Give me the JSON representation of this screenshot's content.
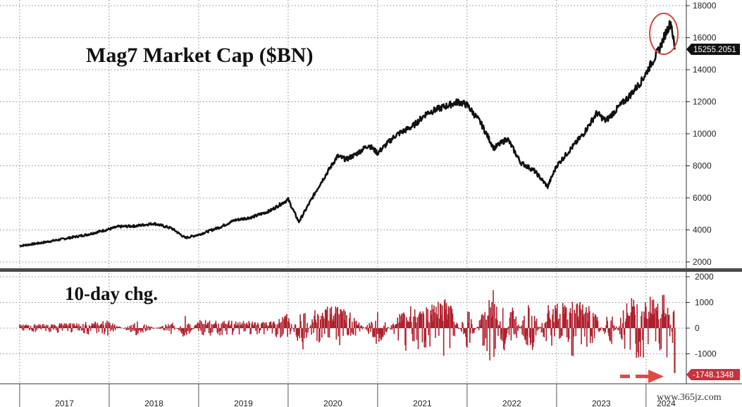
{
  "chart_data": [
    {
      "type": "line",
      "title": "Mag7 Market Cap ($BN)",
      "ylim": [
        1500,
        18200
      ],
      "y_ticks": [
        "2000",
        "4000",
        "6000",
        "8000",
        "10000",
        "12000",
        "14000",
        "16000",
        "18000"
      ],
      "y_tick_values": [
        2000,
        4000,
        6000,
        8000,
        10000,
        12000,
        14000,
        16000,
        18000
      ],
      "x_years": [
        "2017",
        "2018",
        "2019",
        "2020",
        "2021",
        "2022",
        "2023",
        "2024"
      ],
      "last_value_label": "15255.2051",
      "grid": true,
      "series": [
        {
          "x": [
            2017.0,
            2017.25,
            2017.5,
            2017.75,
            2018.0,
            2018.1,
            2018.3,
            2018.5,
            2018.7,
            2018.85,
            2019.0,
            2019.25,
            2019.4,
            2019.6,
            2019.8,
            2020.0,
            2020.12,
            2020.22,
            2020.35,
            2020.55,
            2020.65,
            2020.75,
            2020.9,
            2021.0,
            2021.2,
            2021.4,
            2021.55,
            2021.75,
            2021.9,
            2022.0,
            2022.15,
            2022.3,
            2022.45,
            2022.6,
            2022.75,
            2022.9,
            2023.0,
            2023.15,
            2023.3,
            2023.45,
            2023.55,
            2023.7,
            2023.82,
            2023.95,
            2024.05,
            2024.15,
            2024.22,
            2024.28,
            2024.32
          ],
          "values": [
            3000,
            3200,
            3450,
            3700,
            4050,
            4200,
            4250,
            4400,
            4100,
            3500,
            3700,
            4200,
            4600,
            4800,
            5200,
            5900,
            4500,
            5500,
            6800,
            8600,
            8400,
            8700,
            9300,
            8800,
            9900,
            10500,
            11300,
            11700,
            12000,
            11800,
            10700,
            9100,
            9700,
            8200,
            7700,
            6700,
            8000,
            9000,
            10000,
            11300,
            10800,
            11700,
            12400,
            13300,
            14300,
            15300,
            16300,
            17000,
            15255
          ]
        }
      ]
    },
    {
      "type": "bar",
      "title": "10-day chg.",
      "ylim": [
        -2100,
        2200
      ],
      "y_ticks": [
        "2000",
        "1000",
        "0",
        "-1000"
      ],
      "y_tick_values": [
        2000,
        1000,
        0,
        -1000
      ],
      "last_value_label": "-1748.1348",
      "series": [
        {
          "x": [
            2017.0,
            2017.5,
            2018.0,
            2018.3,
            2018.7,
            2018.85,
            2019.0,
            2019.4,
            2019.8,
            2020.0,
            2020.15,
            2020.3,
            2020.5,
            2020.7,
            2021.0,
            2021.3,
            2021.5,
            2021.8,
            2022.0,
            2022.3,
            2022.4,
            2022.5,
            2022.7,
            2022.9,
            2023.0,
            2023.2,
            2023.4,
            2023.6,
            2023.8,
            2024.0,
            2024.2,
            2024.25,
            2024.32
          ],
          "values": [
            150,
            200,
            300,
            -300,
            250,
            -500,
            350,
            300,
            250,
            600,
            -1100,
            800,
            900,
            700,
            -700,
            900,
            800,
            1200,
            -900,
            1800,
            -1300,
            1000,
            -1200,
            900,
            1000,
            1100,
            900,
            -800,
            1300,
            1200,
            1300,
            1350,
            -1748
          ]
        }
      ]
    }
  ],
  "watermark": "www.365jz.com",
  "colors": {
    "line": "#111111",
    "bars": "#b0202e",
    "highlight": "#d94141",
    "grid": "#8a8a8a",
    "divider": "#4a4a4a"
  }
}
